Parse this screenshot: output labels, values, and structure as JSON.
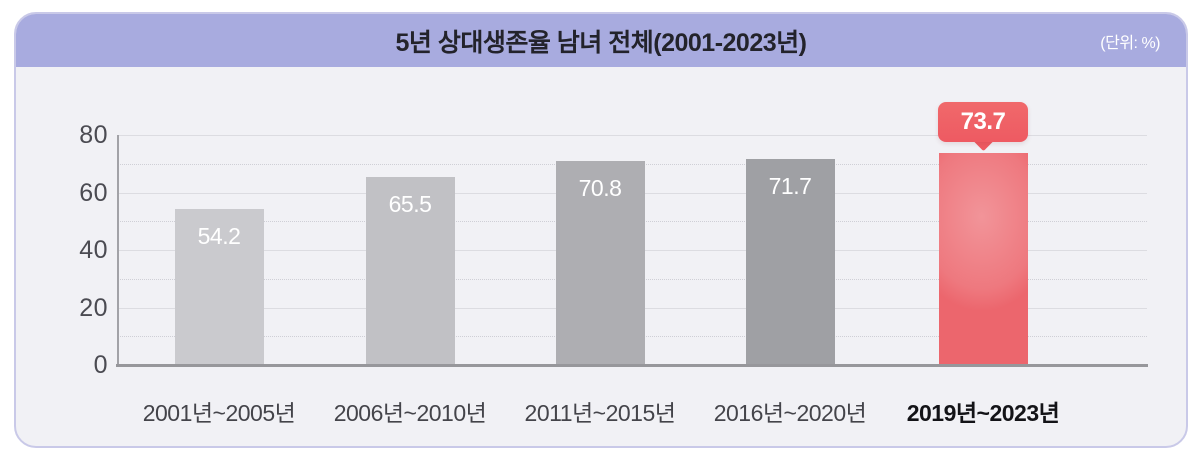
{
  "header": {
    "title": "5년 상대생존율 남녀 전체(2001-2023년)",
    "unit_label": "(단위: %)"
  },
  "chart_data": {
    "type": "bar",
    "title": "5년 상대생존율 남녀 전체(2001-2023년)",
    "unit": "%",
    "categories": [
      "2001년~2005년",
      "2006년~2010년",
      "2011년~2015년",
      "2016년~2020년",
      "2019년~2023년"
    ],
    "values": [
      54.2,
      65.5,
      70.8,
      71.7,
      73.7
    ],
    "value_labels": [
      "54.2",
      "65.5",
      "70.8",
      "71.7",
      "73.7"
    ],
    "yticks": [
      "0",
      "20",
      "40",
      "60",
      "80"
    ],
    "ytick_values": [
      0,
      20,
      40,
      60,
      80
    ],
    "minor_grid_values": [
      10,
      30,
      50,
      70
    ],
    "ylim": [
      0,
      80
    ],
    "grid": "major solid, minor dotted",
    "legend": "none",
    "highlight_index": 4,
    "highlight_callout_value": "73.7",
    "bar_colors": [
      "#cacace",
      "#c1c1c5",
      "#aeaeb2",
      "#9fa0a4",
      "#ec666d"
    ],
    "colors": {
      "header_bg": "#a8abdf",
      "card_bg": "#f1f1f5",
      "card_border": "#c9c9e8",
      "accent_red": "#ee5a62",
      "accent_red_highlight": "#f4948b",
      "axis_line": "#97979b",
      "grid_major": "#dcdce1",
      "grid_minor": "#cfcfd6",
      "tick_label": "#4b4b52",
      "category_label": "#44444a",
      "category_label_highlight": "#131317",
      "value_label": "#ffffff"
    }
  }
}
